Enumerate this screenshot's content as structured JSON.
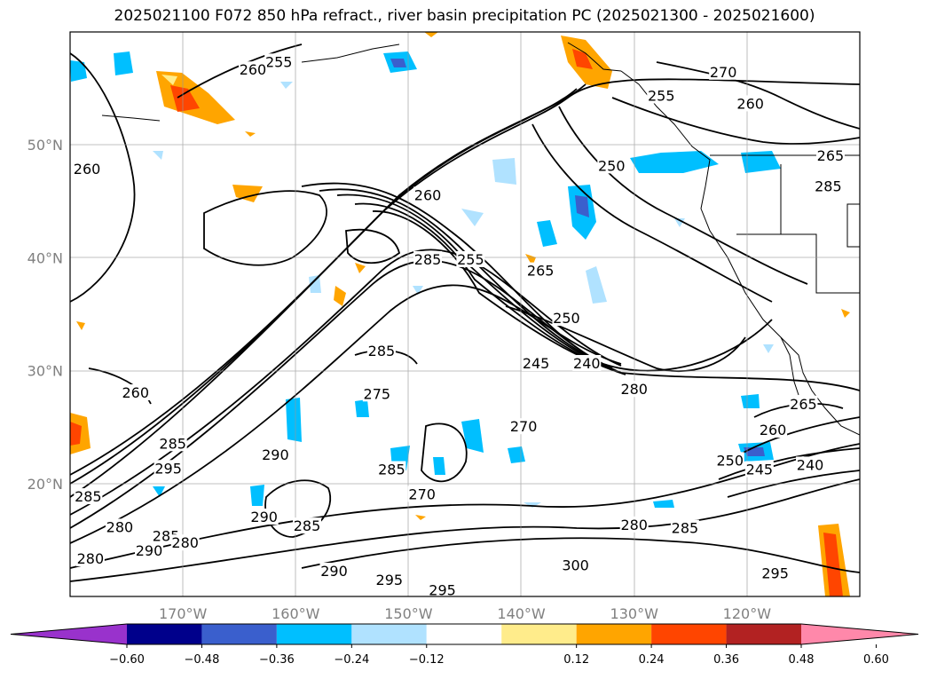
{
  "title": "2025021100 F072 850 hPa refract., river basin precipitation PC (2025021300 - 2025021600)",
  "chart_data": {
    "type": "heatmap",
    "map": {
      "lon_range": [
        -180,
        -110
      ],
      "lat_range": [
        10,
        60
      ],
      "grid": true,
      "lon_ticks": [
        {
          "value": -170,
          "label": "170°W"
        },
        {
          "value": -160,
          "label": "160°W"
        },
        {
          "value": -150,
          "label": "150°W"
        },
        {
          "value": -140,
          "label": "140°W"
        },
        {
          "value": -130,
          "label": "130°W"
        },
        {
          "value": -120,
          "label": "120°W"
        }
      ],
      "lat_ticks": [
        {
          "value": 50,
          "label": "50°N"
        },
        {
          "value": 40,
          "label": "40°N"
        },
        {
          "value": 30,
          "label": "30°N"
        },
        {
          "value": 20,
          "label": "20°N"
        }
      ]
    },
    "colorbar": {
      "ticks": [
        "−0.60",
        "−0.48",
        "−0.36",
        "−0.24",
        "−0.12",
        "0.12",
        "0.24",
        "0.36",
        "0.48",
        "0.60"
      ],
      "extend": "both",
      "colors": [
        "#9932cc",
        "#00008b",
        "#3a5fcd",
        "#00bfff",
        "#b0e2ff",
        "#ffffff",
        "#ffec8b",
        "#ffa500",
        "#ff4500",
        "#b22222",
        "#ff88aa"
      ]
    },
    "contour_labels": [
      {
        "text": "255",
        "lon": -161.5,
        "lat": 57.3
      },
      {
        "text": "260",
        "lon": -163.8,
        "lat": 56.6
      },
      {
        "text": "260",
        "lon": -178.5,
        "lat": 47.8
      },
      {
        "text": "260",
        "lon": -148.3,
        "lat": 45.5
      },
      {
        "text": "255",
        "lon": -144.5,
        "lat": 39.8
      },
      {
        "text": "265",
        "lon": -138.3,
        "lat": 38.8
      },
      {
        "text": "250",
        "lon": -136.0,
        "lat": 34.6
      },
      {
        "text": "245",
        "lon": -138.7,
        "lat": 30.6
      },
      {
        "text": "240",
        "lon": -134.2,
        "lat": 30.6
      },
      {
        "text": "280",
        "lon": -130.0,
        "lat": 28.3
      },
      {
        "text": "285",
        "lon": -148.3,
        "lat": 39.8
      },
      {
        "text": "285",
        "lon": -152.4,
        "lat": 31.7
      },
      {
        "text": "275",
        "lon": -152.8,
        "lat": 27.9
      },
      {
        "text": "260",
        "lon": -174.2,
        "lat": 28.0
      },
      {
        "text": "285",
        "lon": -170.9,
        "lat": 23.5
      },
      {
        "text": "295",
        "lon": -171.3,
        "lat": 21.3
      },
      {
        "text": "290",
        "lon": -161.8,
        "lat": 22.5
      },
      {
        "text": "285",
        "lon": -151.5,
        "lat": 21.2
      },
      {
        "text": "270",
        "lon": -148.8,
        "lat": 19.0
      },
      {
        "text": "270",
        "lon": -139.8,
        "lat": 25.0
      },
      {
        "text": "285",
        "lon": -178.4,
        "lat": 18.8
      },
      {
        "text": "280",
        "lon": -175.6,
        "lat": 16.1
      },
      {
        "text": "285",
        "lon": -171.5,
        "lat": 15.3
      },
      {
        "text": "280",
        "lon": -169.8,
        "lat": 14.7
      },
      {
        "text": "290",
        "lon": -173.0,
        "lat": 14.0
      },
      {
        "text": "280",
        "lon": -178.2,
        "lat": 13.3
      },
      {
        "text": "285",
        "lon": -159.0,
        "lat": 16.2
      },
      {
        "text": "290",
        "lon": -162.8,
        "lat": 17.0
      },
      {
        "text": "290",
        "lon": -156.6,
        "lat": 12.2
      },
      {
        "text": "295",
        "lon": -151.7,
        "lat": 11.4
      },
      {
        "text": "295",
        "lon": -147.0,
        "lat": 10.5
      },
      {
        "text": "300",
        "lon": -135.2,
        "lat": 12.7
      },
      {
        "text": "280",
        "lon": -130.0,
        "lat": 16.3
      },
      {
        "text": "285",
        "lon": -125.5,
        "lat": 16.0
      },
      {
        "text": "295",
        "lon": -117.5,
        "lat": 12.0
      },
      {
        "text": "265",
        "lon": -115.0,
        "lat": 27.0
      },
      {
        "text": "260",
        "lon": -117.7,
        "lat": 24.7
      },
      {
        "text": "250",
        "lon": -121.5,
        "lat": 22.0
      },
      {
        "text": "245",
        "lon": -118.9,
        "lat": 21.2
      },
      {
        "text": "240",
        "lon": -114.4,
        "lat": 21.6
      },
      {
        "text": "250",
        "lon": -132.0,
        "lat": 48.1
      },
      {
        "text": "270",
        "lon": -122.1,
        "lat": 56.4
      },
      {
        "text": "260",
        "lon": -119.7,
        "lat": 53.6
      },
      {
        "text": "265",
        "lon": -112.6,
        "lat": 49.0
      },
      {
        "text": "285",
        "lon": -112.8,
        "lat": 46.3
      },
      {
        "text": "255",
        "lon": -127.6,
        "lat": 54.3
      }
    ]
  }
}
